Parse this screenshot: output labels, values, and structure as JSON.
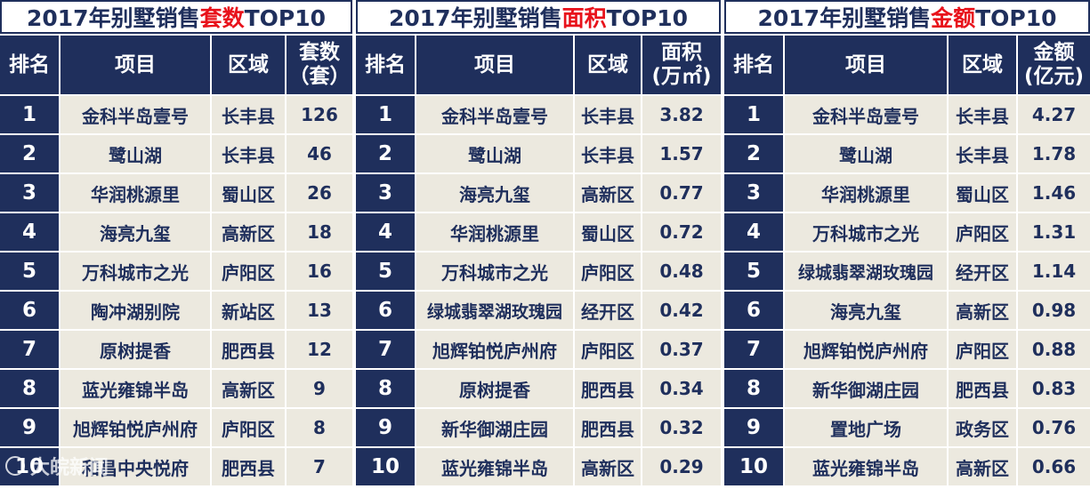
{
  "panels": [
    {
      "title_prefix": "2017年别墅销售",
      "title_highlight": "套数",
      "title_suffix": "TOP10",
      "headers": {
        "rank": "排名",
        "project": "项目",
        "area": "区域",
        "metric_line1": "套数",
        "metric_line2": "（套）"
      },
      "rows": [
        {
          "rank": "1",
          "project": "金科半岛壹号",
          "area": "长丰县",
          "value": "126"
        },
        {
          "rank": "2",
          "project": "鹭山湖",
          "area": "长丰县",
          "value": "46"
        },
        {
          "rank": "3",
          "project": "华润桃源里",
          "area": "蜀山区",
          "value": "26"
        },
        {
          "rank": "4",
          "project": "海亮九玺",
          "area": "高新区",
          "value": "18"
        },
        {
          "rank": "5",
          "project": "万科城市之光",
          "area": "庐阳区",
          "value": "16"
        },
        {
          "rank": "6",
          "project": "陶冲湖别院",
          "area": "新站区",
          "value": "13"
        },
        {
          "rank": "7",
          "project": "原树提香",
          "area": "肥西县",
          "value": "12"
        },
        {
          "rank": "8",
          "project": "蓝光雍锦半岛",
          "area": "高新区",
          "value": "9"
        },
        {
          "rank": "9",
          "project": "旭辉铂悦庐州府",
          "area": "庐阳区",
          "value": "8"
        },
        {
          "rank": "10",
          "project": "和昌中央悦府",
          "area": "肥西县",
          "value": "7"
        }
      ]
    },
    {
      "title_prefix": "2017年别墅销售",
      "title_highlight": "面积",
      "title_suffix": "TOP10",
      "headers": {
        "rank": "排名",
        "project": "项目",
        "area": "区域",
        "metric_line1": "面积",
        "metric_line2": "(万㎡)"
      },
      "rows": [
        {
          "rank": "1",
          "project": "金科半岛壹号",
          "area": "长丰县",
          "value": "3.82"
        },
        {
          "rank": "2",
          "project": "鹭山湖",
          "area": "长丰县",
          "value": "1.57"
        },
        {
          "rank": "3",
          "project": "海亮九玺",
          "area": "高新区",
          "value": "0.77"
        },
        {
          "rank": "4",
          "project": "华润桃源里",
          "area": "蜀山区",
          "value": "0.72"
        },
        {
          "rank": "5",
          "project": "万科城市之光",
          "area": "庐阳区",
          "value": "0.48"
        },
        {
          "rank": "6",
          "project": "绿城翡翠湖玫瑰园",
          "area": "经开区",
          "value": "0.42"
        },
        {
          "rank": "7",
          "project": "旭辉铂悦庐州府",
          "area": "庐阳区",
          "value": "0.37"
        },
        {
          "rank": "8",
          "project": "原树提香",
          "area": "肥西县",
          "value": "0.34"
        },
        {
          "rank": "9",
          "project": "新华御湖庄园",
          "area": "肥西县",
          "value": "0.32"
        },
        {
          "rank": "10",
          "project": "蓝光雍锦半岛",
          "area": "高新区",
          "value": "0.29"
        }
      ]
    },
    {
      "title_prefix": "2017年别墅销售",
      "title_highlight": "金额",
      "title_suffix": "TOP10",
      "headers": {
        "rank": "排名",
        "project": "项目",
        "area": "区域",
        "metric_line1": "金额",
        "metric_line2": "(亿元)"
      },
      "rows": [
        {
          "rank": "1",
          "project": "金科半岛壹号",
          "area": "长丰县",
          "value": "4.27"
        },
        {
          "rank": "2",
          "project": "鹭山湖",
          "area": "长丰县",
          "value": "1.78"
        },
        {
          "rank": "3",
          "project": "华润桃源里",
          "area": "蜀山区",
          "value": "1.46"
        },
        {
          "rank": "4",
          "project": "万科城市之光",
          "area": "庐阳区",
          "value": "1.31"
        },
        {
          "rank": "5",
          "project": "绿城翡翠湖玫瑰园",
          "area": "经开区",
          "value": "1.14"
        },
        {
          "rank": "6",
          "project": "海亮九玺",
          "area": "高新区",
          "value": "0.98"
        },
        {
          "rank": "7",
          "project": "旭辉铂悦庐州府",
          "area": "庐阳区",
          "value": "0.88"
        },
        {
          "rank": "8",
          "project": "新华御湖庄园",
          "area": "肥西县",
          "value": "0.83"
        },
        {
          "rank": "9",
          "project": "置地广场",
          "area": "政务区",
          "value": "0.76"
        },
        {
          "rank": "10",
          "project": "蓝光雍锦半岛",
          "area": "高新区",
          "value": "0.66"
        }
      ]
    }
  ],
  "watermark": "大皖新闻",
  "colors": {
    "navy": "#1f2f5c",
    "cell_bg": "#ece9df",
    "highlight_red": "#e8121b"
  }
}
